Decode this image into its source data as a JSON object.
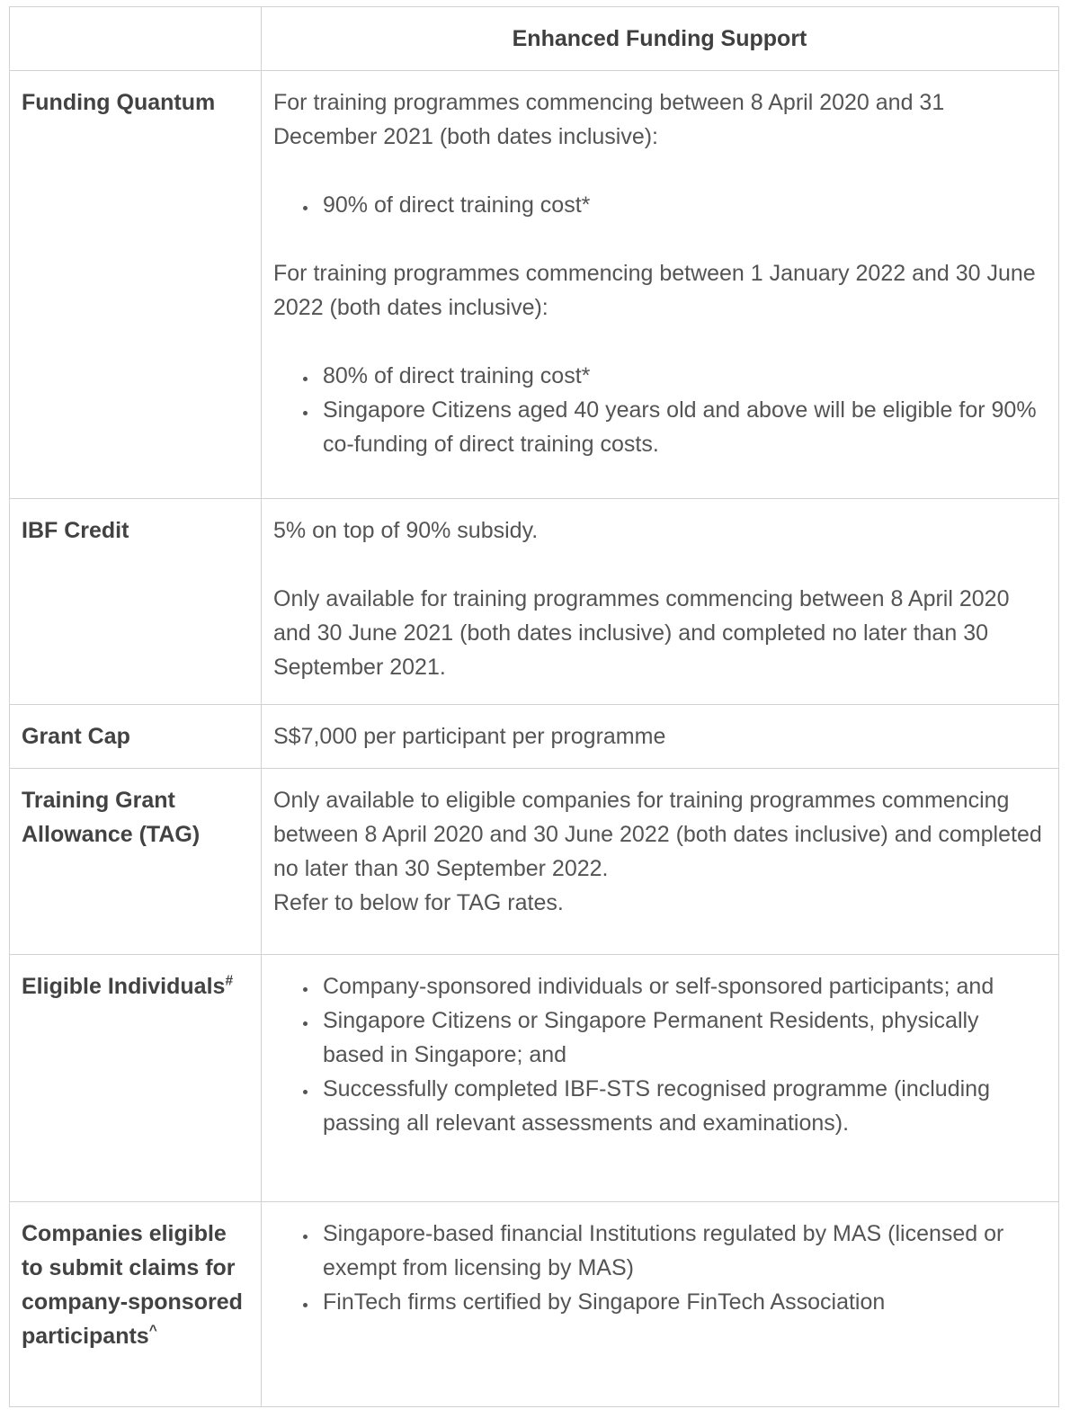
{
  "colors": {
    "border": "#d2d2d2",
    "label_text": "#424242",
    "body_text": "#545454",
    "background": "#ffffff"
  },
  "table": {
    "header": {
      "label_col": "",
      "value_col": "Enhanced Funding Support"
    },
    "rows": [
      {
        "label": "Funding Quantum",
        "content": [
          {
            "type": "p",
            "text": "For training programmes commencing between 8 April 2020 and 31 December 2021 (both dates inclusive):"
          },
          {
            "type": "bullets",
            "items": [
              "90% of direct training cost*"
            ]
          },
          {
            "type": "p",
            "text": "For training programmes commencing between 1 January 2022 and 30 June 2022 (both dates inclusive):"
          },
          {
            "type": "bullets",
            "items": [
              "80% of direct training cost*",
              "Singapore Citizens aged 40 years old and above will be eligible for 90% co-funding of direct training costs."
            ]
          }
        ]
      },
      {
        "label": "IBF Credit",
        "content": [
          {
            "type": "p",
            "text": "5% on top of 90% subsidy."
          },
          {
            "type": "p",
            "text": "Only available for training programmes commencing between 8 April 2020 and 30 June 2021 (both dates inclusive) and completed no later than 30 September 2021."
          }
        ]
      },
      {
        "label": "Grant Cap",
        "content": [
          {
            "type": "p",
            "text": "S$7,000 per participant per programme"
          }
        ]
      },
      {
        "label": "Training Grant Allowance (TAG)",
        "content": [
          {
            "type": "p",
            "text": "Only available to eligible companies for training programmes commencing between 8 April 2020 and 30 June 2022 (both dates inclusive) and completed no later than 30 September 2022."
          },
          {
            "type": "p",
            "tight": true,
            "text": "Refer to below for TAG rates."
          }
        ]
      },
      {
        "label": "Eligible Individuals",
        "label_sup": "#",
        "content": [
          {
            "type": "bullets",
            "items": [
              "Company-sponsored individuals or self-sponsored participants; and",
              "Singapore Citizens or Singapore Permanent Residents, physically based in Singapore; and",
              "Successfully completed IBF-STS recognised programme (including passing all relevant assessments and examinations)."
            ]
          }
        ]
      },
      {
        "label": "Companies eligible to submit claims for company-sponsored participants",
        "label_sup": "^",
        "content": [
          {
            "type": "bullets",
            "items": [
              "Singapore-based financial Institutions regulated by MAS (licensed or exempt from licensing by MAS)",
              "FinTech firms certified by Singapore FinTech Association"
            ]
          }
        ]
      }
    ]
  }
}
